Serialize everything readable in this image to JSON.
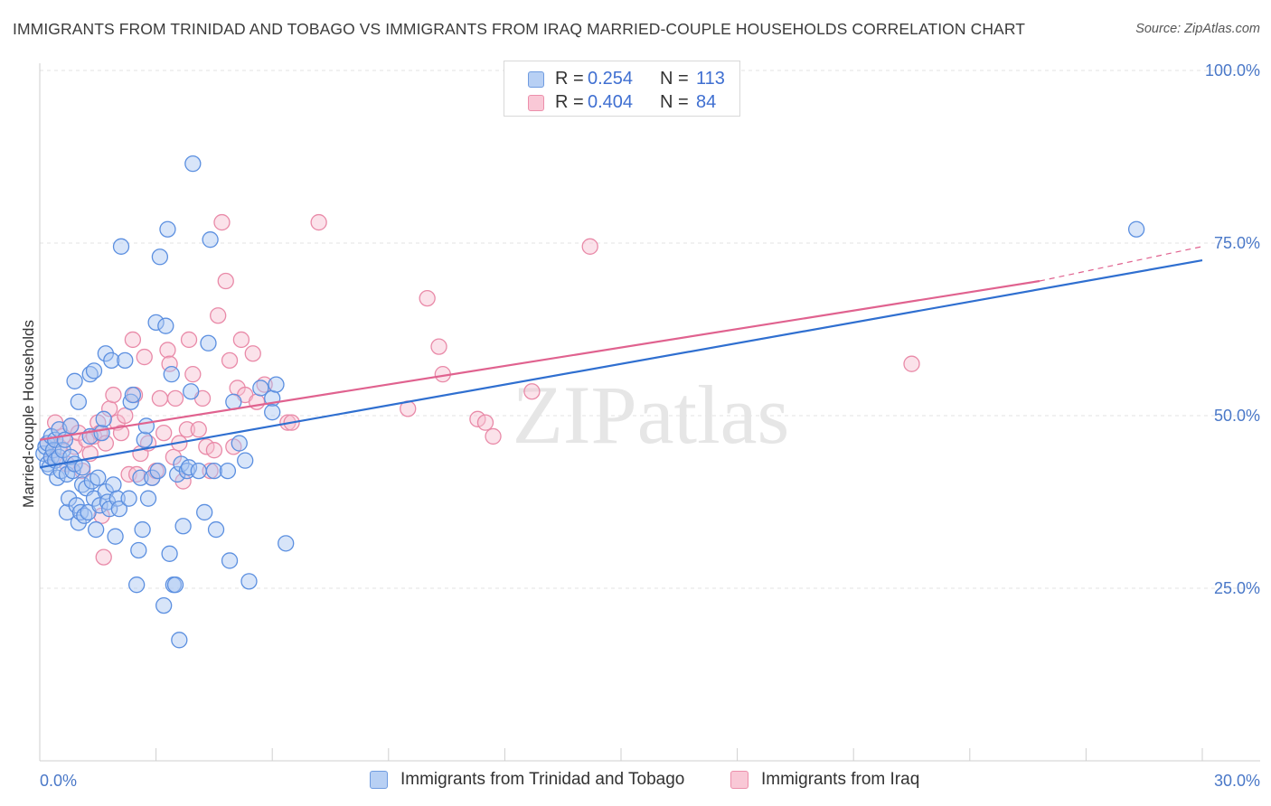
{
  "header": {
    "title": "IMMIGRANTS FROM TRINIDAD AND TOBAGO VS IMMIGRANTS FROM IRAQ MARRIED-COUPLE HOUSEHOLDS CORRELATION CHART",
    "source": "Source: ZipAtlas.com"
  },
  "colors": {
    "blue_fill": "#a9c6f2",
    "blue_stroke": "#5b8fe0",
    "blue_line": "#2f6fd0",
    "pink_fill": "#f7bfd0",
    "pink_stroke": "#e98aa8",
    "pink_line": "#e0628f",
    "tick_text": "#4a78c8",
    "grid": "#e3e3e3"
  },
  "legend": {
    "rows": [
      {
        "r_label": "R =",
        "r_value": "0.254",
        "n_label": "N =",
        "n_value": "113",
        "series": "blue"
      },
      {
        "r_label": "R =",
        "r_value": "0.404",
        "n_label": "N =",
        "n_value": "84",
        "series": "pink"
      }
    ]
  },
  "bottom_legend": {
    "items": [
      {
        "label": "Immigrants from Trinidad and Tobago",
        "series": "blue"
      },
      {
        "label": "Immigrants from Iraq",
        "series": "pink"
      }
    ]
  },
  "chart_data": {
    "type": "scatter",
    "title": "IMMIGRANTS FROM TRINIDAD AND TOBAGO VS IMMIGRANTS FROM IRAQ MARRIED-COUPLE HOUSEHOLDS CORRELATION CHART",
    "xlabel": "",
    "ylabel": "Married-couple Households",
    "xlim": [
      0,
      30
    ],
    "ylim": [
      0,
      105
    ],
    "x_tick_labels": [
      "0.0%",
      "30.0%"
    ],
    "y_ticks": [
      {
        "value": 25,
        "label": "25.0%"
      },
      {
        "value": 50,
        "label": "50.0%"
      },
      {
        "value": 75,
        "label": "75.0%"
      },
      {
        "value": 100,
        "label": "100.0%"
      }
    ],
    "watermark": "ZIPatlas",
    "series": [
      {
        "name": "Immigrants from Trinidad and Tobago",
        "color": "blue",
        "trend": {
          "x": [
            0,
            30
          ],
          "y": [
            42.5,
            72.5
          ]
        },
        "points": [
          [
            0.1,
            44.5
          ],
          [
            0.15,
            45.5
          ],
          [
            0.2,
            43
          ],
          [
            0.2,
            46
          ],
          [
            0.25,
            42.5
          ],
          [
            0.3,
            47
          ],
          [
            0.3,
            44
          ],
          [
            0.35,
            45
          ],
          [
            0.4,
            43.5
          ],
          [
            0.4,
            46.5
          ],
          [
            0.45,
            41
          ],
          [
            0.5,
            44
          ],
          [
            0.5,
            48
          ],
          [
            0.55,
            42
          ],
          [
            0.6,
            45
          ],
          [
            0.65,
            46.5
          ],
          [
            0.7,
            36
          ],
          [
            0.7,
            41.5
          ],
          [
            0.75,
            38
          ],
          [
            0.8,
            44
          ],
          [
            0.8,
            48.5
          ],
          [
            0.85,
            42
          ],
          [
            0.9,
            55
          ],
          [
            0.9,
            43
          ],
          [
            0.95,
            37
          ],
          [
            1.0,
            52
          ],
          [
            1.0,
            34.5
          ],
          [
            1.05,
            36
          ],
          [
            1.1,
            42.5
          ],
          [
            1.1,
            40
          ],
          [
            1.15,
            35.5
          ],
          [
            1.2,
            39.5
          ],
          [
            1.25,
            36
          ],
          [
            1.3,
            56
          ],
          [
            1.3,
            47
          ],
          [
            1.35,
            40.5
          ],
          [
            1.4,
            38
          ],
          [
            1.4,
            56.5
          ],
          [
            1.45,
            33.5
          ],
          [
            1.5,
            41
          ],
          [
            1.55,
            37
          ],
          [
            1.6,
            47.5
          ],
          [
            1.65,
            49.5
          ],
          [
            1.7,
            59
          ],
          [
            1.7,
            39
          ],
          [
            1.75,
            37.5
          ],
          [
            1.8,
            36.5
          ],
          [
            1.85,
            58
          ],
          [
            1.9,
            40
          ],
          [
            1.95,
            32.5
          ],
          [
            2.0,
            38
          ],
          [
            2.05,
            36.5
          ],
          [
            2.1,
            74.5
          ],
          [
            2.2,
            58
          ],
          [
            2.3,
            38
          ],
          [
            2.35,
            52
          ],
          [
            2.4,
            53
          ],
          [
            2.5,
            25.5
          ],
          [
            2.55,
            30.5
          ],
          [
            2.6,
            41
          ],
          [
            2.65,
            33.5
          ],
          [
            2.7,
            46.5
          ],
          [
            2.75,
            48.5
          ],
          [
            2.8,
            38
          ],
          [
            2.9,
            41
          ],
          [
            3.0,
            63.5
          ],
          [
            3.05,
            42
          ],
          [
            3.1,
            73
          ],
          [
            3.2,
            22.5
          ],
          [
            3.25,
            63
          ],
          [
            3.3,
            77
          ],
          [
            3.35,
            30
          ],
          [
            3.4,
            56
          ],
          [
            3.45,
            25.5
          ],
          [
            3.5,
            25.5
          ],
          [
            3.55,
            41.5
          ],
          [
            3.6,
            17.5
          ],
          [
            3.65,
            43
          ],
          [
            3.7,
            34
          ],
          [
            3.8,
            42
          ],
          [
            3.85,
            42.5
          ],
          [
            3.9,
            53.5
          ],
          [
            3.95,
            86.5
          ],
          [
            4.1,
            42
          ],
          [
            4.25,
            36
          ],
          [
            4.35,
            60.5
          ],
          [
            4.4,
            75.5
          ],
          [
            4.5,
            42
          ],
          [
            4.55,
            33.5
          ],
          [
            4.85,
            42
          ],
          [
            4.9,
            29
          ],
          [
            5.0,
            52
          ],
          [
            5.15,
            46
          ],
          [
            5.3,
            43.5
          ],
          [
            5.4,
            26
          ],
          [
            5.7,
            54
          ],
          [
            6.0,
            52.5
          ],
          [
            6.0,
            50.5
          ],
          [
            6.1,
            54.5
          ],
          [
            6.35,
            31.5
          ],
          [
            28.3,
            77
          ]
        ]
      },
      {
        "name": "Immigrants from Iraq",
        "color": "pink",
        "trend": {
          "x": [
            0,
            25.8
          ],
          "y": [
            46.5,
            69.5
          ]
        },
        "trend_ext": {
          "x": [
            25.8,
            30
          ],
          "y": [
            69.5,
            74.5
          ]
        },
        "points": [
          [
            0.2,
            46
          ],
          [
            0.3,
            44
          ],
          [
            0.4,
            49
          ],
          [
            0.5,
            45.5
          ],
          [
            0.6,
            47
          ],
          [
            0.7,
            43
          ],
          [
            0.8,
            48.5
          ],
          [
            0.9,
            45.5
          ],
          [
            1.0,
            47.5
          ],
          [
            1.1,
            42
          ],
          [
            1.2,
            46.5
          ],
          [
            1.3,
            44.5
          ],
          [
            1.4,
            47
          ],
          [
            1.5,
            49
          ],
          [
            1.55,
            47.5
          ],
          [
            1.6,
            35.5
          ],
          [
            1.65,
            29.5
          ],
          [
            1.7,
            46
          ],
          [
            1.8,
            51
          ],
          [
            1.9,
            53
          ],
          [
            2.0,
            49
          ],
          [
            2.1,
            47.5
          ],
          [
            2.2,
            50
          ],
          [
            2.3,
            41.5
          ],
          [
            2.4,
            61
          ],
          [
            2.45,
            53
          ],
          [
            2.5,
            41.5
          ],
          [
            2.6,
            44.5
          ],
          [
            2.7,
            58.5
          ],
          [
            2.8,
            46
          ],
          [
            2.9,
            41
          ],
          [
            3.0,
            42
          ],
          [
            3.1,
            52.5
          ],
          [
            3.2,
            47.5
          ],
          [
            3.3,
            59.5
          ],
          [
            3.35,
            57.5
          ],
          [
            3.45,
            44
          ],
          [
            3.5,
            52.5
          ],
          [
            3.6,
            46
          ],
          [
            3.7,
            40.5
          ],
          [
            3.8,
            48
          ],
          [
            3.85,
            61
          ],
          [
            3.95,
            56
          ],
          [
            4.1,
            48
          ],
          [
            4.2,
            52.5
          ],
          [
            4.3,
            45.5
          ],
          [
            4.4,
            42
          ],
          [
            4.5,
            45
          ],
          [
            4.6,
            64.5
          ],
          [
            4.7,
            78
          ],
          [
            4.8,
            69.5
          ],
          [
            4.9,
            58
          ],
          [
            5.0,
            45.5
          ],
          [
            5.1,
            54
          ],
          [
            5.2,
            61
          ],
          [
            5.3,
            53
          ],
          [
            5.5,
            59
          ],
          [
            5.6,
            52
          ],
          [
            5.8,
            54.5
          ],
          [
            6.4,
            49
          ],
          [
            6.5,
            49
          ],
          [
            7.2,
            78
          ],
          [
            9.5,
            51
          ],
          [
            10.0,
            67
          ],
          [
            10.3,
            60
          ],
          [
            10.4,
            56
          ],
          [
            11.3,
            49.5
          ],
          [
            11.5,
            49
          ],
          [
            11.7,
            47
          ],
          [
            12.7,
            53.5
          ],
          [
            14.2,
            74.5
          ],
          [
            22.5,
            57.5
          ]
        ]
      }
    ]
  }
}
